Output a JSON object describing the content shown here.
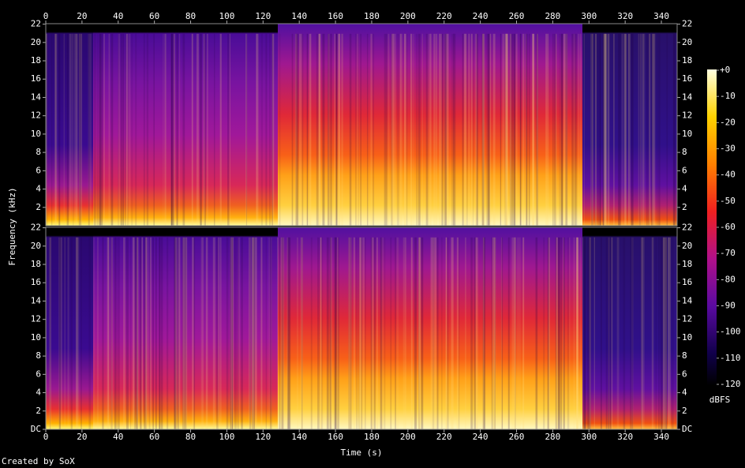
{
  "chart_data": {
    "type": "spectrogram",
    "xlabel": "Time (s)",
    "ylabel": "Frequency (kHz)",
    "xlim": [
      0,
      348.7
    ],
    "xticks": [
      0,
      20,
      40,
      60,
      80,
      100,
      120,
      140,
      160,
      180,
      200,
      220,
      240,
      260,
      280,
      300,
      320,
      340
    ],
    "ylim": [
      0,
      22.05
    ],
    "channels": [
      {
        "yticks": [
          2,
          4,
          6,
          8,
          10,
          12,
          14,
          16,
          18,
          20,
          22
        ]
      },
      {
        "yticks": [
          {
            "value": 0,
            "label": "DC"
          },
          2,
          4,
          6,
          8,
          10,
          12,
          14,
          16,
          18,
          20,
          22
        ]
      }
    ],
    "colorbar": {
      "label": "dBFS",
      "lim": [
        -120,
        0
      ],
      "ticks": [
        {
          "value": 0,
          "label": "+0"
        },
        -10,
        -20,
        -30,
        -40,
        -50,
        -60,
        -70,
        -80,
        -90,
        -100,
        -110,
        -120
      ]
    }
  },
  "footer": "Created by SoX"
}
